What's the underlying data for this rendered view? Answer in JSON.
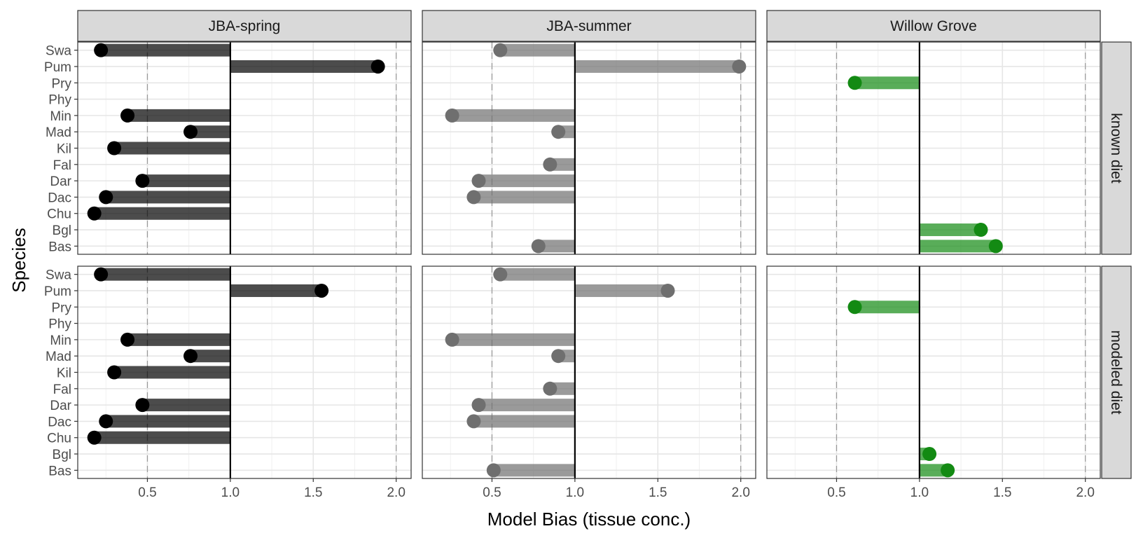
{
  "chart_data": {
    "type": "lollipop",
    "xlabel": "Model Bias (tissue conc.)",
    "ylabel": "Species",
    "xlim": [
      0.08,
      2.09
    ],
    "x_ticks": [
      0.5,
      1.0,
      1.5,
      2.0
    ],
    "x_tick_labels": [
      "0.5",
      "1.0",
      "1.5",
      "2.0"
    ],
    "reference_line": 1.0,
    "dashed_lines": [
      0.5,
      2.0
    ],
    "categories": [
      "Swa",
      "Pum",
      "Pry",
      "Phy",
      "Min",
      "Mad",
      "Kil",
      "Fal",
      "Dar",
      "Dac",
      "Chu",
      "Bgl",
      "Bas"
    ],
    "columns": [
      {
        "label": "JBA-spring",
        "color": "#000000"
      },
      {
        "label": "JBA-summer",
        "color": "#6f6f6f"
      },
      {
        "label": "Willow Grove",
        "color": "#138a13"
      }
    ],
    "rows": [
      {
        "label": "known diet"
      },
      {
        "label": "modeled diet"
      }
    ],
    "series": [
      {
        "column": 0,
        "row": 0,
        "values": [
          0.22,
          1.89,
          null,
          null,
          0.38,
          0.76,
          0.3,
          null,
          0.47,
          0.25,
          0.18,
          null,
          null
        ]
      },
      {
        "column": 1,
        "row": 0,
        "values": [
          0.55,
          1.99,
          null,
          null,
          0.26,
          0.9,
          null,
          0.85,
          0.42,
          0.39,
          null,
          null,
          0.78
        ]
      },
      {
        "column": 2,
        "row": 0,
        "values": [
          null,
          null,
          0.61,
          null,
          null,
          null,
          null,
          null,
          null,
          null,
          null,
          1.37,
          1.46
        ]
      },
      {
        "column": 0,
        "row": 1,
        "values": [
          0.22,
          1.55,
          null,
          null,
          0.38,
          0.76,
          0.3,
          null,
          0.47,
          0.25,
          0.18,
          null,
          null
        ]
      },
      {
        "column": 1,
        "row": 1,
        "values": [
          0.55,
          1.56,
          null,
          null,
          0.26,
          0.9,
          null,
          0.85,
          0.42,
          0.39,
          null,
          null,
          0.51
        ]
      },
      {
        "column": 2,
        "row": 1,
        "values": [
          null,
          null,
          0.61,
          null,
          null,
          null,
          null,
          null,
          null,
          null,
          null,
          1.06,
          1.17
        ]
      }
    ]
  }
}
